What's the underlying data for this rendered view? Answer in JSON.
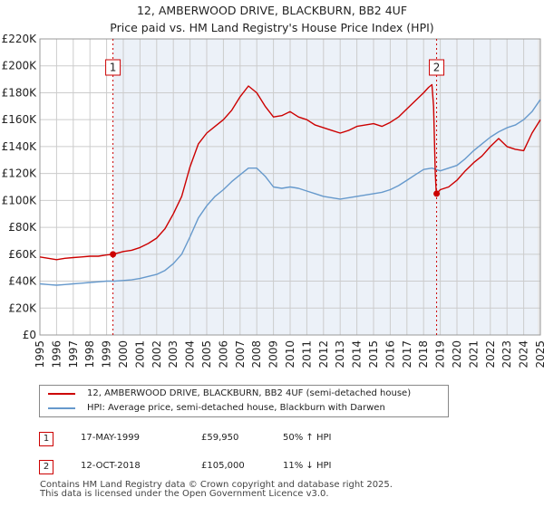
{
  "chart_data": {
    "type": "line",
    "title": "12, AMBERWOOD DRIVE, BLACKBURN, BB2 4UF",
    "subtitle": "Price paid vs. HM Land Registry's House Price Index (HPI)",
    "xlim": [
      1995,
      2025
    ],
    "ylim": [
      0,
      220000
    ],
    "x_ticks": [
      "1995",
      "1996",
      "1997",
      "1998",
      "1999",
      "2000",
      "2001",
      "2002",
      "2003",
      "2004",
      "2005",
      "2006",
      "2007",
      "2008",
      "2009",
      "2010",
      "2011",
      "2012",
      "2013",
      "2014",
      "2015",
      "2016",
      "2017",
      "2018",
      "2019",
      "2020",
      "2021",
      "2022",
      "2023",
      "2024",
      "2025"
    ],
    "y_ticks": [
      {
        "value": 0,
        "label": "£0"
      },
      {
        "value": 20000,
        "label": "£20K"
      },
      {
        "value": 40000,
        "label": "£40K"
      },
      {
        "value": 60000,
        "label": "£60K"
      },
      {
        "value": 80000,
        "label": "£80K"
      },
      {
        "value": 100000,
        "label": "£100K"
      },
      {
        "value": 120000,
        "label": "£120K"
      },
      {
        "value": 140000,
        "label": "£140K"
      },
      {
        "value": 160000,
        "label": "£160K"
      },
      {
        "value": 180000,
        "label": "£180K"
      },
      {
        "value": 200000,
        "label": "£200K"
      },
      {
        "value": 220000,
        "label": "£220K"
      }
    ],
    "grid": true,
    "series": [
      {
        "name": "12, AMBERWOOD DRIVE, BLACKBURN, BB2 4UF (semi-detached house)",
        "color": "#cc0000",
        "x": [
          1995.0,
          1995.5,
          1996.0,
          1996.5,
          1997.0,
          1997.5,
          1998.0,
          1998.5,
          1999.0,
          1999.38,
          2000.0,
          2000.5,
          2001.0,
          2001.5,
          2002.0,
          2002.5,
          2003.0,
          2003.5,
          2004.0,
          2004.5,
          2005.0,
          2005.5,
          2006.0,
          2006.5,
          2007.0,
          2007.5,
          2008.0,
          2008.5,
          2009.0,
          2009.5,
          2010.0,
          2010.5,
          2011.0,
          2011.5,
          2012.0,
          2012.5,
          2013.0,
          2013.5,
          2014.0,
          2014.5,
          2015.0,
          2015.5,
          2016.0,
          2016.5,
          2017.0,
          2017.5,
          2018.0,
          2018.3,
          2018.5,
          2018.6,
          2018.7,
          2018.75,
          2018.78,
          2019.0,
          2019.5,
          2020.0,
          2020.5,
          2021.0,
          2021.5,
          2022.0,
          2022.5,
          2023.0,
          2023.5,
          2024.0,
          2024.5,
          2025.0
        ],
        "y": [
          58000,
          57000,
          56000,
          57000,
          57500,
          58000,
          58500,
          58500,
          59500,
          59950,
          62000,
          63000,
          65000,
          68000,
          72000,
          79000,
          90000,
          103000,
          125000,
          142000,
          150000,
          155000,
          160000,
          167000,
          177000,
          185000,
          180000,
          170000,
          162000,
          163000,
          166000,
          162000,
          160000,
          156000,
          154000,
          152000,
          150000,
          152000,
          155000,
          156000,
          157000,
          155000,
          158000,
          162000,
          168000,
          174000,
          180000,
          184000,
          186000,
          170000,
          120000,
          108000,
          105000,
          108000,
          110000,
          115000,
          122000,
          128000,
          133000,
          140000,
          146000,
          140000,
          138000,
          137000,
          150000,
          160000
        ]
      },
      {
        "name": "HPI: Average price, semi-detached house, Blackburn with Darwen",
        "color": "#6699cc",
        "x": [
          1995.0,
          1995.5,
          1996.0,
          1996.5,
          1997.0,
          1997.5,
          1998.0,
          1998.5,
          1999.0,
          1999.5,
          2000.0,
          2000.5,
          2001.0,
          2001.5,
          2002.0,
          2002.5,
          2003.0,
          2003.5,
          2004.0,
          2004.5,
          2005.0,
          2005.5,
          2006.0,
          2006.5,
          2007.0,
          2007.5,
          2008.0,
          2008.5,
          2009.0,
          2009.5,
          2010.0,
          2010.5,
          2011.0,
          2011.5,
          2012.0,
          2012.5,
          2013.0,
          2013.5,
          2014.0,
          2014.5,
          2015.0,
          2015.5,
          2016.0,
          2016.5,
          2017.0,
          2017.5,
          2018.0,
          2018.5,
          2019.0,
          2019.5,
          2020.0,
          2020.5,
          2021.0,
          2021.5,
          2022.0,
          2022.5,
          2023.0,
          2023.5,
          2024.0,
          2024.5,
          2025.0
        ],
        "y": [
          38000,
          37500,
          37000,
          37500,
          38000,
          38500,
          39000,
          39500,
          40000,
          40000,
          40500,
          41000,
          42000,
          43500,
          45000,
          48000,
          53000,
          60000,
          73000,
          87000,
          96000,
          103000,
          108000,
          114000,
          119000,
          124000,
          124000,
          118000,
          110000,
          109000,
          110000,
          109000,
          107000,
          105000,
          103000,
          102000,
          101000,
          102000,
          103000,
          104000,
          105000,
          106000,
          108000,
          111000,
          115000,
          119000,
          123000,
          124000,
          122000,
          124000,
          126000,
          131000,
          137000,
          142000,
          147000,
          151000,
          154000,
          156000,
          160000,
          166000,
          175000
        ]
      }
    ],
    "annotations": [
      {
        "label": "1",
        "x": 1999.38,
        "y": 59950,
        "color": "#cc0000"
      },
      {
        "label": "2",
        "x": 2018.78,
        "y": 105000,
        "color": "#cc0000"
      }
    ]
  },
  "legend": {
    "items": [
      {
        "label": "12, AMBERWOOD DRIVE, BLACKBURN, BB2 4UF (semi-detached house)",
        "color": "#cc0000"
      },
      {
        "label": "HPI: Average price, semi-detached house, Blackburn with Darwen",
        "color": "#6699cc"
      }
    ]
  },
  "sales": [
    {
      "badge": "1",
      "date": "17-MAY-1999",
      "price": "£59,950",
      "hpi_change": "50% ↑ HPI"
    },
    {
      "badge": "2",
      "date": "12-OCT-2018",
      "price": "£105,000",
      "hpi_change": "11% ↓ HPI"
    }
  ],
  "footer": {
    "line1": "Contains HM Land Registry data © Crown copyright and database right 2025.",
    "line2": "This data is licensed under the Open Government Licence v3.0."
  }
}
